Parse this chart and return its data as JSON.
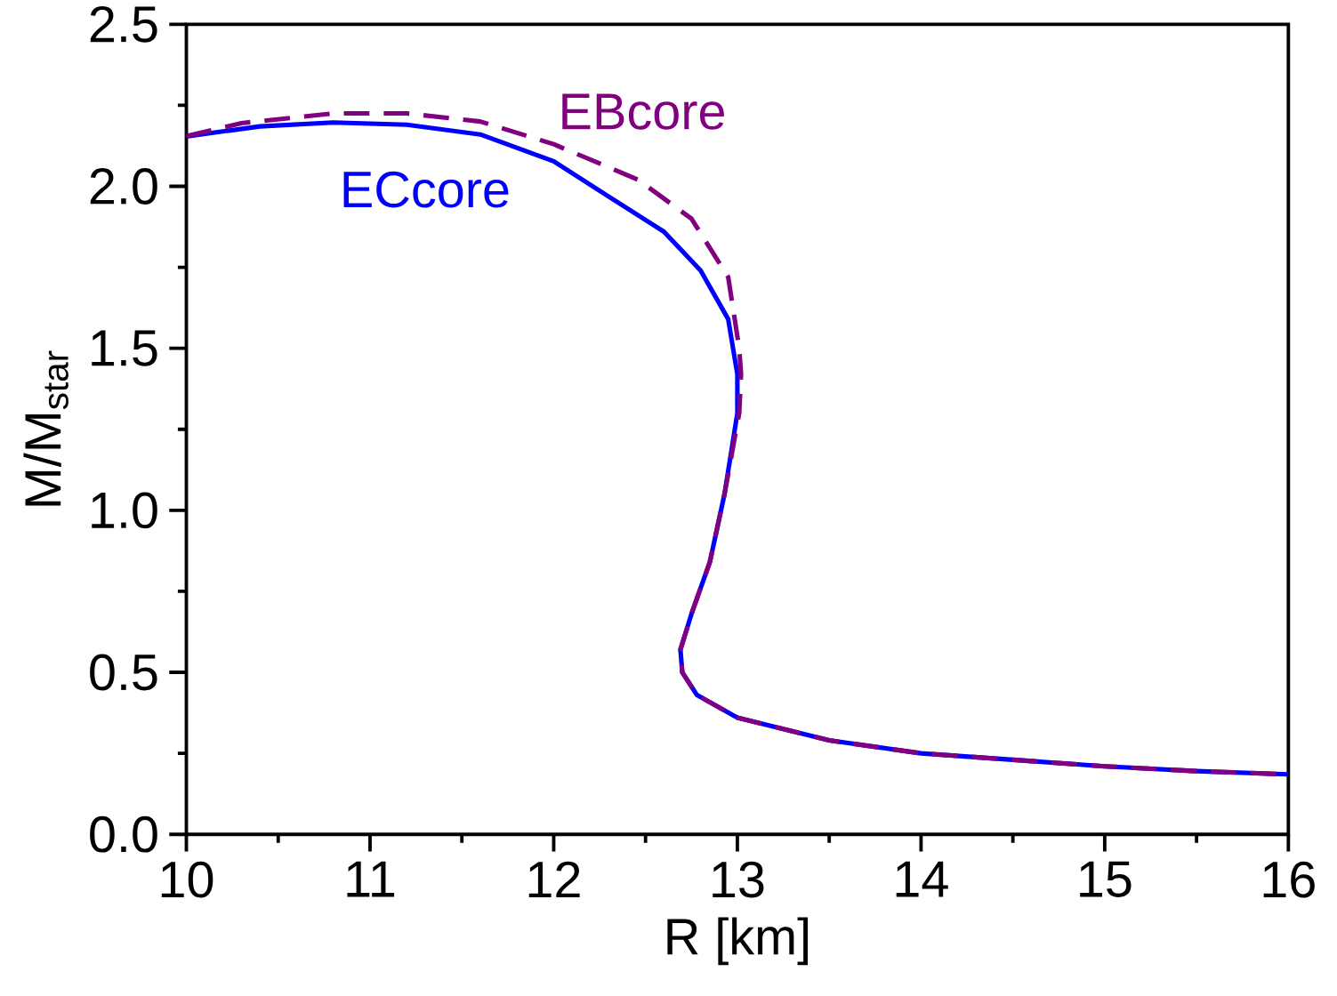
{
  "chart_data": {
    "type": "line",
    "xlabel": "R [km]",
    "ylabel": "M/M$_{star}$",
    "xlim": [
      10,
      16
    ],
    "ylim": [
      0,
      2.5
    ],
    "xticks": [
      10,
      11,
      12,
      13,
      14,
      15,
      16
    ],
    "yticks": [
      {
        "value": 0,
        "label": "0.0"
      },
      {
        "value": 0.5,
        "label": "0.5"
      },
      {
        "value": 1,
        "label": "1.0"
      },
      {
        "value": 1.5,
        "label": "1.5"
      },
      {
        "value": 2,
        "label": "2.0"
      },
      {
        "value": 2.5,
        "label": "2.5"
      }
    ],
    "grid": false,
    "legend": false,
    "series": [
      {
        "name": "ECcore",
        "color": "#0000ff",
        "line_style": "solid",
        "x": [
          10.0,
          10.4,
          10.8,
          11.2,
          11.6,
          12.0,
          12.3,
          12.6,
          12.8,
          12.95,
          13.0,
          13.0,
          12.93,
          12.85,
          12.75,
          12.69,
          12.7,
          12.78,
          13.0,
          13.5,
          14.0,
          14.5,
          15.0,
          15.5,
          16.0
        ],
        "values": [
          2.154,
          2.185,
          2.197,
          2.19,
          2.16,
          2.077,
          1.968,
          1.86,
          1.74,
          1.59,
          1.42,
          1.3,
          1.05,
          0.84,
          0.68,
          0.57,
          0.5,
          0.43,
          0.36,
          0.29,
          0.25,
          0.23,
          0.21,
          0.195,
          0.185
        ]
      },
      {
        "name": "EBcore",
        "color": "#800080",
        "line_style": "dashed",
        "x": [
          10.0,
          10.3,
          10.8,
          11.2,
          11.6,
          12.0,
          12.46,
          12.75,
          12.95,
          13.01,
          13.02,
          13.01,
          12.93,
          12.85,
          12.75,
          12.69,
          12.7,
          12.78,
          13.0,
          13.5,
          14.0,
          14.5,
          15.0,
          15.5,
          16.0
        ],
        "values": [
          2.155,
          2.195,
          2.225,
          2.225,
          2.2,
          2.13,
          2.02,
          1.9,
          1.72,
          1.5,
          1.42,
          1.3,
          1.05,
          0.84,
          0.68,
          0.57,
          0.5,
          0.43,
          0.36,
          0.29,
          0.25,
          0.23,
          0.21,
          0.195,
          0.185
        ]
      }
    ]
  }
}
